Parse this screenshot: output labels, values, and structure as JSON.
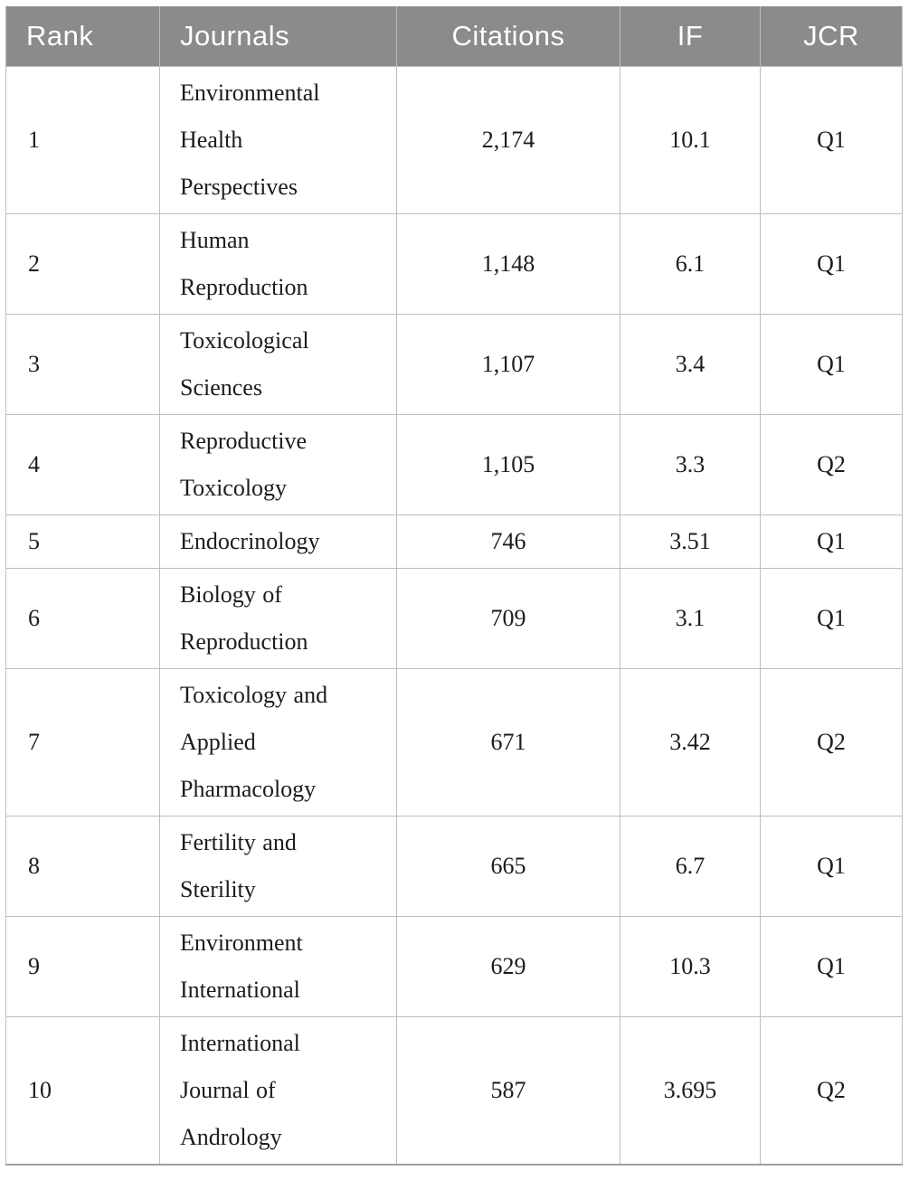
{
  "figure": {
    "kind": "journal-ranking-table"
  },
  "table": {
    "header": {
      "rank": "Rank",
      "journals": "Journals",
      "citations": "Citations",
      "impact_factor": "IF",
      "jcr": "JCR"
    },
    "rows": [
      {
        "rank": "1",
        "journal": "Environmental Health Perspectives",
        "citations": "2,174",
        "if": "10.1",
        "jcr": "Q1"
      },
      {
        "rank": "2",
        "journal": "Human Reproduction",
        "citations": "1,148",
        "if": "6.1",
        "jcr": "Q1"
      },
      {
        "rank": "3",
        "journal": "Toxicological Sciences",
        "citations": "1,107",
        "if": "3.4",
        "jcr": "Q1"
      },
      {
        "rank": "4",
        "journal": "Reproductive Toxicology",
        "citations": "1,105",
        "if": "3.3",
        "jcr": "Q2"
      },
      {
        "rank": "5",
        "journal": "Endocrinology",
        "citations": "746",
        "if": "3.51",
        "jcr": "Q1"
      },
      {
        "rank": "6",
        "journal": "Biology of Reproduction",
        "citations": "709",
        "if": "3.1",
        "jcr": "Q1"
      },
      {
        "rank": "7",
        "journal": "Toxicology and Applied Pharmacology",
        "citations": "671",
        "if": "3.42",
        "jcr": "Q2"
      },
      {
        "rank": "8",
        "journal": "Fertility and Sterility",
        "citations": "665",
        "if": "6.7",
        "jcr": "Q1"
      },
      {
        "rank": "9",
        "journal": "Environment International",
        "citations": "629",
        "if": "10.3",
        "jcr": "Q1"
      },
      {
        "rank": "10",
        "journal": "International Journal of Andrology",
        "citations": "587",
        "if": "3.695",
        "jcr": "Q2"
      }
    ]
  },
  "colors": {
    "header_background": "#8b8b8b",
    "header_text": "#ffffff",
    "grid_line": "#bdbdbd",
    "bottom_rule": "#9f9f9f",
    "body_text": "#1c1c1c",
    "page_background": "#ffffff"
  }
}
